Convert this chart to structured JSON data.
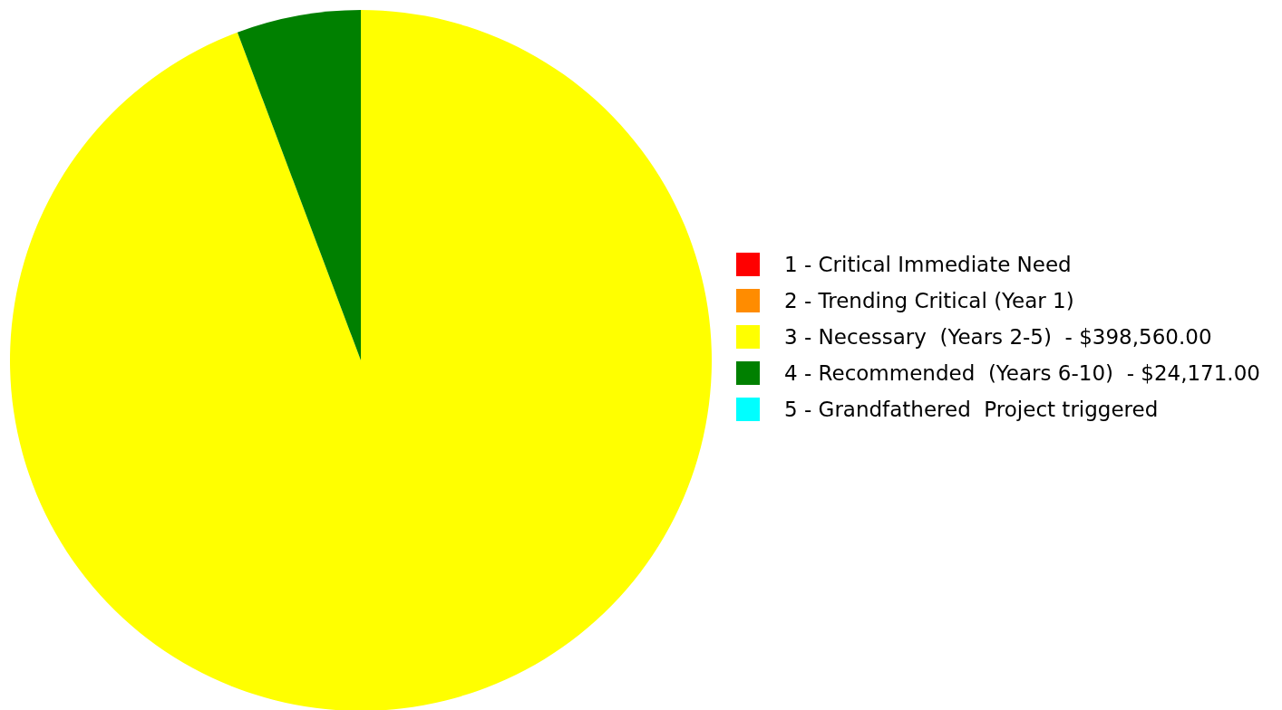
{
  "chart_data": {
    "type": "pie",
    "categories": [
      "1 - Critical Immediate Need",
      "2 - Trending Critical (Year 1)",
      "3 - Necessary  (Years 2-5)  - $398,560.00",
      "4 - Recommended  (Years 6-10)  - $24,171.00",
      "5 - Grandfathered  Project triggered"
    ],
    "values": [
      0,
      0,
      94.28,
      5.72,
      0
    ],
    "colors": [
      "#ff0000",
      "#ff8c00",
      "#ffff00",
      "#008000",
      "#00ffff"
    ],
    "legend": "right"
  }
}
